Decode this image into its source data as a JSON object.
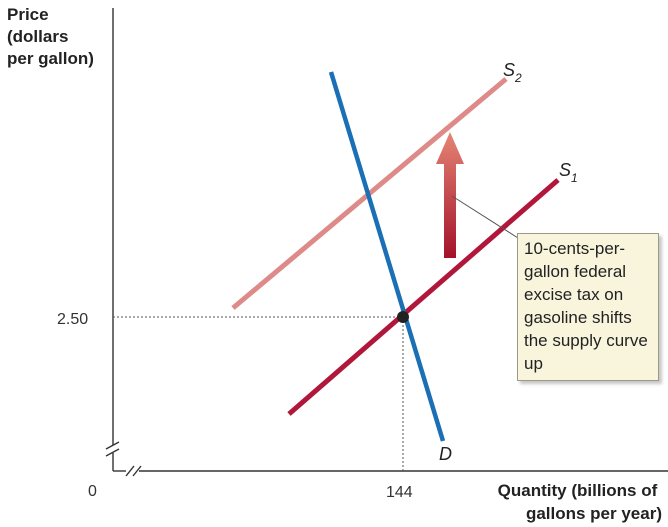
{
  "chart_data": {
    "type": "line",
    "title": "",
    "ylabel_lines": [
      "Price",
      "(dollars",
      "per gallon)"
    ],
    "xlabel_lines": [
      "Quantity (billions of",
      "gallons per year)"
    ],
    "origin_label": "0",
    "x_ticks": [
      {
        "value": 144,
        "label": "144"
      }
    ],
    "y_ticks": [
      {
        "value": 2.5,
        "label": "2.50"
      }
    ],
    "axis_breaks": true,
    "grid": false,
    "equilibrium": {
      "quantity": 144,
      "price": 2.5
    },
    "series": [
      {
        "name": "D",
        "label_main": "D",
        "label_sub": "",
        "color": "#1a6fb5"
      },
      {
        "name": "S1",
        "label_main": "S",
        "label_sub": "1",
        "color": "#b0173a"
      },
      {
        "name": "S2",
        "label_main": "S",
        "label_sub": "2",
        "color": "#de8a88"
      }
    ],
    "arrow": {
      "direction": "up",
      "color_top": "#e58575",
      "color_bottom": "#a3122a"
    },
    "annotation": "10-cents-per-gallon federal excise tax on gasoline shifts the supply curve up"
  }
}
